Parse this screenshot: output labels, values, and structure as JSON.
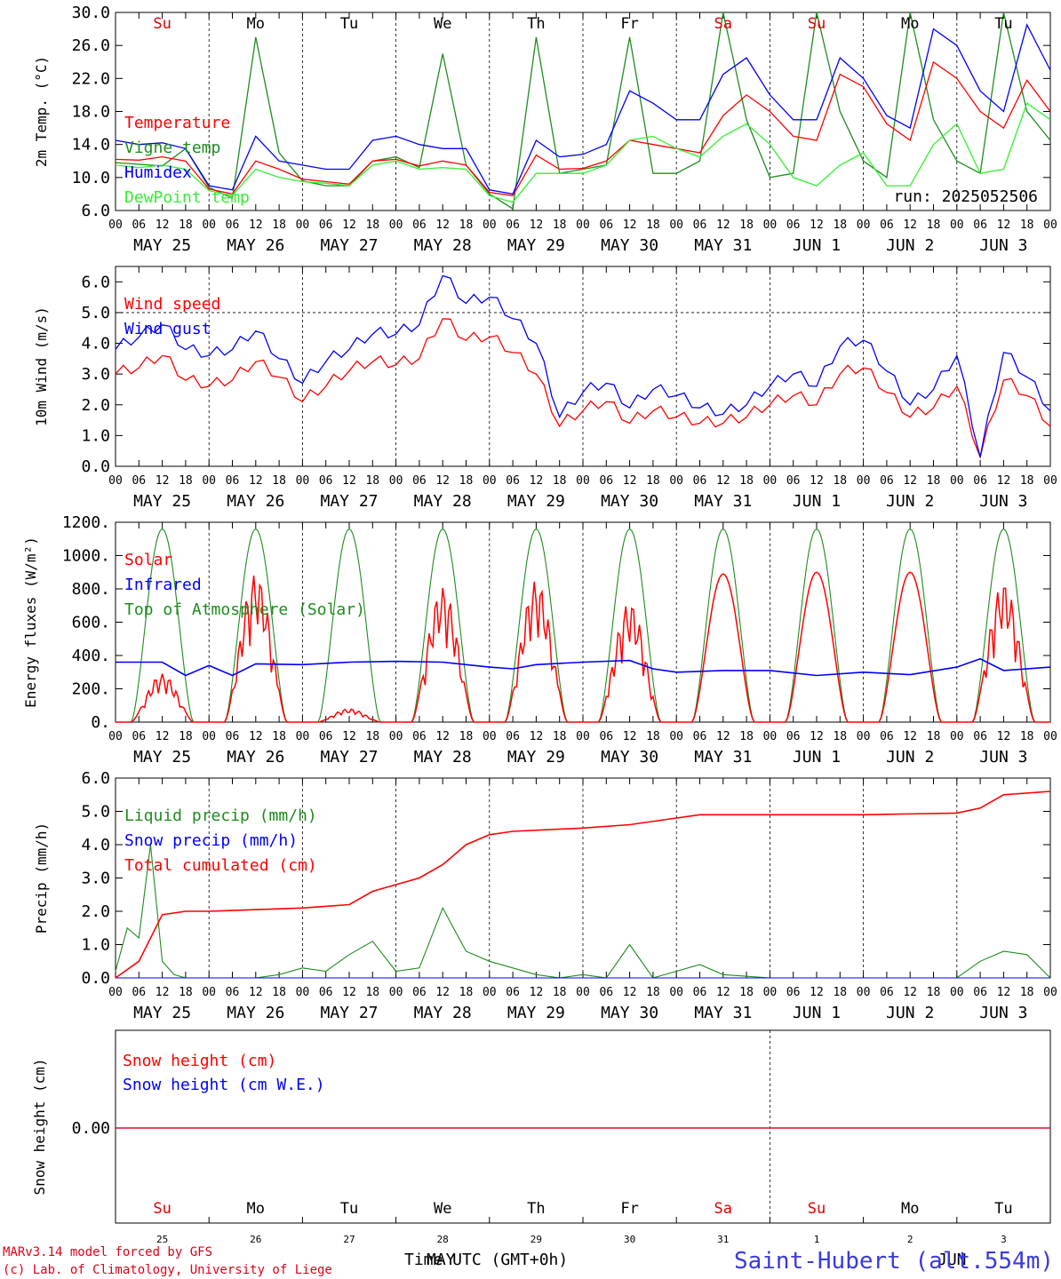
{
  "day_names": [
    {
      "label": "Su",
      "color": "#e00000"
    },
    {
      "label": "Mo",
      "color": "#000000"
    },
    {
      "label": "Tu",
      "color": "#000000"
    },
    {
      "label": "We",
      "color": "#000000"
    },
    {
      "label": "Th",
      "color": "#000000"
    },
    {
      "label": "Fr",
      "color": "#000000"
    },
    {
      "label": "Sa",
      "color": "#e00000"
    },
    {
      "label": "Su",
      "color": "#e00000"
    },
    {
      "label": "Mo",
      "color": "#000000"
    },
    {
      "label": "Tu",
      "color": "#000000"
    }
  ],
  "hour_ticks": [
    "00",
    "06",
    "12",
    "18"
  ],
  "date_labels": [
    "MAY 25",
    "MAY 26",
    "MAY 27",
    "MAY 28",
    "MAY 29",
    "MAY 30",
    "MAY 31",
    "JUN  1",
    "JUN  2",
    "JUN  3"
  ],
  "run_label": "run: 2025052506",
  "footer": {
    "model_line": "MARv3.14 model forced by GFS",
    "credit_line": "(c) Lab. of Climatology, University of Liege",
    "station": "Saint-Hubert (alt.554m)",
    "time_axis_label": "Time UTC (GMT+0h)",
    "month_may": "MAY",
    "month_jun": "JUN",
    "day_numbers": [
      "25",
      "26",
      "27",
      "28",
      "29",
      "30",
      "31",
      "1",
      "2",
      "3"
    ]
  },
  "chart_data": [
    {
      "id": "temperature",
      "type": "line",
      "ylabel": "2m Temp. (°C)",
      "ylim": [
        6.0,
        30.0
      ],
      "yticks": [
        "6.0",
        "10.0",
        "14.0",
        "18.0",
        "22.0",
        "26.0",
        "30.0"
      ],
      "ytick_values": [
        6,
        10,
        14,
        18,
        22,
        26,
        30
      ],
      "x": [
        0,
        6,
        12,
        18,
        24,
        30,
        36,
        42,
        48,
        54,
        60,
        66,
        72,
        78,
        84,
        90,
        96,
        102,
        108,
        114,
        120,
        126,
        132,
        138,
        144,
        150,
        156,
        162,
        168,
        174,
        180,
        186,
        192,
        198,
        204,
        210,
        216,
        222,
        228,
        234,
        240
      ],
      "series": [
        {
          "name": "Temperature",
          "color": "#ff0000",
          "values": [
            12.2,
            12.1,
            12.5,
            12.0,
            8.6,
            8.0,
            12.0,
            11.0,
            9.8,
            9.5,
            9.2,
            12.0,
            12.2,
            11.4,
            12.0,
            11.5,
            8.2,
            7.8,
            12.7,
            11.0,
            11.1,
            12.0,
            14.5,
            14.0,
            13.5,
            13.0,
            17.5,
            20.0,
            18.0,
            15.0,
            14.5,
            22.5,
            21.0,
            16.5,
            14.5,
            24.0,
            22.0,
            18.0,
            16.0,
            21.8,
            18.0
          ]
        },
        {
          "name": "Vigne temp",
          "color": "#1e8c1e",
          "values": [
            11.8,
            11.6,
            11.4,
            13.5,
            8.8,
            7.5,
            27.0,
            13.0,
            9.6,
            9.0,
            9.0,
            12.0,
            12.5,
            11.2,
            25.0,
            11.5,
            8.0,
            6.2,
            27.0,
            10.5,
            11.0,
            11.5,
            27.0,
            10.5,
            10.5,
            12.0,
            30.0,
            17.0,
            10.0,
            10.5,
            30.0,
            18.0,
            12.0,
            10.0,
            30.0,
            17.0,
            12.0,
            10.5,
            30.0,
            18.0,
            14.5
          ]
        },
        {
          "name": "Humidex",
          "color": "#0000ff",
          "values": [
            14.5,
            14.0,
            14.2,
            13.5,
            9.0,
            8.5,
            15.0,
            12.0,
            11.5,
            11.0,
            11.0,
            14.5,
            15.0,
            14.0,
            13.5,
            13.5,
            8.5,
            8.0,
            14.5,
            12.5,
            12.8,
            14.0,
            20.5,
            19.0,
            17.0,
            17.0,
            22.5,
            24.5,
            20.0,
            17.0,
            17.0,
            24.5,
            22.0,
            17.5,
            16.0,
            28.0,
            26.0,
            20.5,
            18.0,
            28.5,
            23.0
          ]
        },
        {
          "name": "DewPoint temp",
          "color": "#33ee33",
          "values": [
            11.5,
            11.2,
            11.5,
            11.0,
            8.4,
            7.8,
            11.0,
            10.0,
            9.5,
            9.3,
            9.0,
            11.5,
            12.0,
            11.0,
            11.2,
            11.0,
            7.8,
            7.0,
            10.5,
            10.5,
            10.5,
            11.5,
            14.5,
            15.0,
            13.5,
            12.5,
            15.0,
            16.5,
            14.0,
            10.0,
            9.0,
            11.5,
            13.0,
            9.0,
            9.0,
            14.0,
            16.5,
            10.5,
            11.0,
            19.0,
            17.0
          ]
        }
      ]
    },
    {
      "id": "wind",
      "type": "line",
      "ylabel": "10m Wind (m/s)",
      "ylim": [
        0.0,
        6.5
      ],
      "yticks": [
        "0.0",
        "1.0",
        "2.0",
        "3.0",
        "4.0",
        "5.0",
        "6.0"
      ],
      "ytick_values": [
        0,
        1,
        2,
        3,
        4,
        5,
        6
      ],
      "reference_line": 5.0,
      "x": [
        0,
        6,
        12,
        18,
        24,
        30,
        36,
        42,
        48,
        54,
        60,
        66,
        72,
        78,
        84,
        90,
        96,
        102,
        108,
        114,
        120,
        126,
        132,
        138,
        144,
        150,
        156,
        162,
        168,
        174,
        180,
        186,
        192,
        198,
        204,
        210,
        216,
        222,
        228,
        234,
        240
      ],
      "series": [
        {
          "name": "Wind speed",
          "color": "#ff0000",
          "values": [
            3.0,
            3.2,
            3.6,
            2.8,
            2.6,
            2.8,
            3.4,
            2.9,
            2.1,
            2.6,
            3.1,
            3.4,
            3.3,
            3.5,
            4.8,
            4.1,
            4.2,
            3.7,
            3.0,
            1.3,
            1.8,
            2.1,
            1.4,
            1.8,
            1.6,
            1.4,
            1.4,
            1.6,
            2.0,
            2.3,
            2.0,
            3.0,
            3.2,
            2.4,
            1.6,
            1.9,
            2.6,
            0.3,
            2.8,
            2.3,
            1.3
          ]
        },
        {
          "name": "Wind gust",
          "color": "#0000ff",
          "values": [
            3.8,
            4.2,
            4.6,
            3.8,
            3.6,
            3.8,
            4.4,
            3.5,
            2.7,
            3.4,
            3.8,
            4.3,
            4.3,
            4.6,
            6.2,
            5.3,
            5.5,
            4.8,
            4.0,
            1.6,
            2.4,
            2.7,
            1.9,
            2.5,
            2.3,
            1.9,
            1.7,
            2.0,
            2.6,
            3.0,
            2.6,
            3.9,
            4.1,
            3.1,
            2.0,
            2.5,
            3.6,
            0.3,
            3.7,
            2.9,
            1.8
          ]
        }
      ]
    },
    {
      "id": "energy",
      "type": "line",
      "ylabel": "Energy fluxes (W/m²)",
      "ylim": [
        0,
        1200
      ],
      "yticks": [
        "0.",
        "200.",
        "400.",
        "600.",
        "800.",
        "1000.",
        "1200."
      ],
      "ytick_values": [
        0,
        200,
        400,
        600,
        800,
        1000,
        1200
      ],
      "series": [
        {
          "name": "Solar",
          "color": "#ff0000",
          "daily_peak": [
            290,
            890,
            80,
            810,
            850,
            720,
            890,
            900,
            900,
            840
          ]
        },
        {
          "name": "Infrared",
          "color": "#0000ff",
          "x": [
            0,
            12,
            18,
            24,
            30,
            36,
            48,
            60,
            72,
            84,
            96,
            102,
            108,
            120,
            132,
            138,
            144,
            156,
            168,
            180,
            192,
            204,
            216,
            222,
            228,
            240
          ],
          "values": [
            360,
            360,
            280,
            340,
            280,
            350,
            345,
            360,
            365,
            360,
            330,
            320,
            345,
            360,
            370,
            320,
            300,
            310,
            310,
            280,
            300,
            285,
            330,
            380,
            310,
            330
          ]
        },
        {
          "name": "Top of Atmosphere (Solar)",
          "color": "#1e8c1e",
          "daily_peak": [
            1160,
            1160,
            1160,
            1160,
            1160,
            1160,
            1160,
            1160,
            1160,
            1160
          ]
        }
      ]
    },
    {
      "id": "precip",
      "type": "line",
      "ylabel": "Precip (mm/h)",
      "ylim": [
        0.0,
        6.0
      ],
      "yticks": [
        "0.0",
        "1.0",
        "2.0",
        "3.0",
        "4.0",
        "5.0",
        "6.0"
      ],
      "ytick_values": [
        0,
        1,
        2,
        3,
        4,
        5,
        6
      ],
      "series": [
        {
          "name": "Liquid precip (mm/h)",
          "color": "#1e8c1e",
          "x": [
            0,
            3,
            6,
            9,
            12,
            15,
            18,
            24,
            36,
            42,
            48,
            54,
            60,
            66,
            72,
            78,
            84,
            90,
            96,
            102,
            108,
            114,
            120,
            126,
            132,
            138,
            144,
            150,
            156,
            168,
            216,
            222,
            228,
            234,
            240
          ],
          "values": [
            0.2,
            1.5,
            1.2,
            4.0,
            0.5,
            0.1,
            0.0,
            0.0,
            0.0,
            0.1,
            0.3,
            0.2,
            0.7,
            1.1,
            0.2,
            0.3,
            2.1,
            0.8,
            0.5,
            0.3,
            0.1,
            0.0,
            0.1,
            0.0,
            1.0,
            0.0,
            0.2,
            0.4,
            0.1,
            0.0,
            0.0,
            0.5,
            0.8,
            0.7,
            0.0
          ]
        },
        {
          "name": "Snow precip (mm/h)",
          "color": "#0000ff",
          "x": [
            0,
            240
          ],
          "values": [
            0.0,
            0.0
          ]
        },
        {
          "name": "Total cumulated (cm)",
          "color": "#ff0000",
          "x": [
            0,
            6,
            12,
            18,
            24,
            48,
            60,
            66,
            78,
            84,
            90,
            96,
            102,
            120,
            132,
            144,
            150,
            168,
            192,
            216,
            222,
            228,
            240
          ],
          "values": [
            0.0,
            0.5,
            1.9,
            2.0,
            2.0,
            2.1,
            2.2,
            2.6,
            3.0,
            3.4,
            4.0,
            4.3,
            4.4,
            4.5,
            4.6,
            4.8,
            4.9,
            4.9,
            4.9,
            4.95,
            5.1,
            5.5,
            5.6
          ]
        }
      ]
    },
    {
      "id": "snow",
      "type": "line",
      "ylabel": "Snow height (cm)",
      "yticks": [
        "0.00"
      ],
      "ytick_values": [
        0
      ],
      "series": [
        {
          "name": "Snow height (cm)",
          "color": "#ff0000",
          "x": [
            0,
            240
          ],
          "values": [
            0.0,
            0.0
          ]
        },
        {
          "name": "Snow height (cm W.E.)",
          "color": "#0000ff",
          "x": [
            0,
            240
          ],
          "values": [
            0.0,
            0.0
          ]
        }
      ]
    }
  ]
}
